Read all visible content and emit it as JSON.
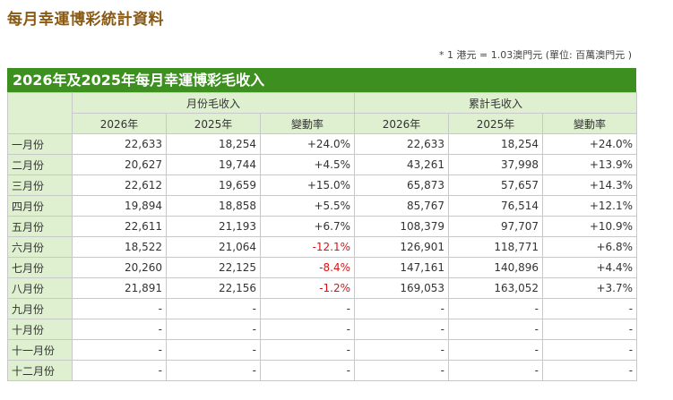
{
  "page_title": "每月幸運博彩統計資料",
  "note": "* 1 港元 = 1.03澳門元 (單位: 百萬澳門元 )",
  "table": {
    "caption": "2026年及2025年每月幸運博彩毛收入",
    "group_monthly": "月份毛收入",
    "group_cumulative": "累計毛收入",
    "sub_headers": [
      "2026年",
      "2025年",
      "變動率",
      "2026年",
      "2025年",
      "變動率"
    ],
    "rows": [
      {
        "month": "一月份",
        "m2026": "22,633",
        "m2025": "18,254",
        "mchg": "+24.0%",
        "c2026": "22,633",
        "c2025": "18,254",
        "cchg": "+24.0%"
      },
      {
        "month": "二月份",
        "m2026": "20,627",
        "m2025": "19,744",
        "mchg": "+4.5%",
        "c2026": "43,261",
        "c2025": "37,998",
        "cchg": "+13.9%"
      },
      {
        "month": "三月份",
        "m2026": "22,612",
        "m2025": "19,659",
        "mchg": "+15.0%",
        "c2026": "65,873",
        "c2025": "57,657",
        "cchg": "+14.3%"
      },
      {
        "month": "四月份",
        "m2026": "19,894",
        "m2025": "18,858",
        "mchg": "+5.5%",
        "c2026": "85,767",
        "c2025": "76,514",
        "cchg": "+12.1%"
      },
      {
        "month": "五月份",
        "m2026": "22,611",
        "m2025": "21,193",
        "mchg": "+6.7%",
        "c2026": "108,379",
        "c2025": "97,707",
        "cchg": "+10.9%"
      },
      {
        "month": "六月份",
        "m2026": "18,522",
        "m2025": "21,064",
        "mchg": "-12.1%",
        "c2026": "126,901",
        "c2025": "118,771",
        "cchg": "+6.8%"
      },
      {
        "month": "七月份",
        "m2026": "20,260",
        "m2025": "22,125",
        "mchg": "-8.4%",
        "c2026": "147,161",
        "c2025": "140,896",
        "cchg": "+4.4%"
      },
      {
        "month": "八月份",
        "m2026": "21,891",
        "m2025": "22,156",
        "mchg": "-1.2%",
        "c2026": "169,053",
        "c2025": "163,052",
        "cchg": "+3.7%"
      },
      {
        "month": "九月份",
        "m2026": "-",
        "m2025": "-",
        "mchg": "-",
        "c2026": "-",
        "c2025": "-",
        "cchg": "-"
      },
      {
        "month": "十月份",
        "m2026": "-",
        "m2025": "-",
        "mchg": "-",
        "c2026": "-",
        "c2025": "-",
        "cchg": "-"
      },
      {
        "month": "十一月份",
        "m2026": "-",
        "m2025": "-",
        "mchg": "-",
        "c2026": "-",
        "c2025": "-",
        "cchg": "-"
      },
      {
        "month": "十二月份",
        "m2026": "-",
        "m2025": "-",
        "mchg": "-",
        "c2026": "-",
        "c2025": "-",
        "cchg": "-"
      }
    ]
  },
  "colors": {
    "title": "#8a5a14",
    "caption_bg": "#3d8f1f",
    "header_bg": "#dff0d0",
    "negative": "#e01010"
  }
}
